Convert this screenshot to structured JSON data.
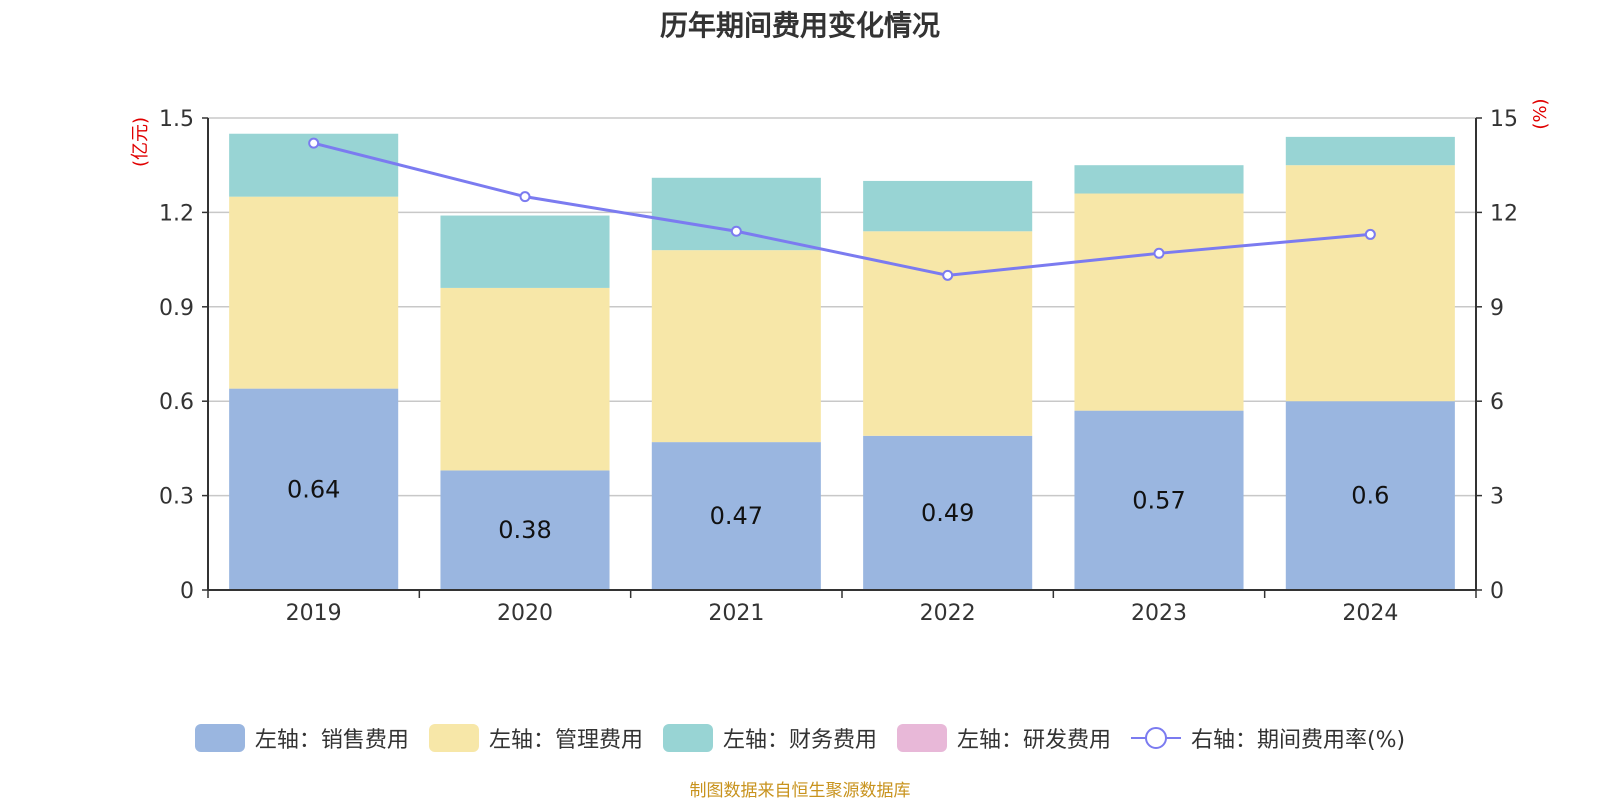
{
  "chart_data": {
    "type": "bar",
    "title": "历年期间费用变化情况",
    "categories": [
      "2019",
      "2020",
      "2021",
      "2022",
      "2023",
      "2024"
    ],
    "y_left": {
      "unit_label": "(亿元)",
      "ylim": [
        0,
        1.5
      ],
      "ticks": [
        "0",
        "0.3",
        "0.6",
        "0.9",
        "1.2",
        "1.5"
      ]
    },
    "y_right": {
      "unit_label": "(%)",
      "ylim": [
        0,
        15
      ],
      "ticks": [
        "0",
        "3",
        "6",
        "9",
        "12",
        "15"
      ]
    },
    "series": [
      {
        "name": "左轴：销售费用",
        "type": "bar",
        "axis": "left",
        "color": "#9ab6e0",
        "values": [
          0.64,
          0.38,
          0.47,
          0.49,
          0.57,
          0.6
        ],
        "labels": [
          "0.64",
          "0.38",
          "0.47",
          "0.49",
          "0.57",
          "0.6"
        ]
      },
      {
        "name": "左轴：管理费用",
        "type": "bar",
        "axis": "left",
        "color": "#f7e7a8",
        "values": [
          0.61,
          0.58,
          0.61,
          0.65,
          0.69,
          0.75
        ]
      },
      {
        "name": "左轴：财务费用",
        "type": "bar",
        "axis": "left",
        "color": "#98d4d4",
        "values": [
          0.2,
          0.23,
          0.23,
          0.16,
          0.09,
          0.09
        ]
      },
      {
        "name": "左轴：研发费用",
        "type": "bar",
        "axis": "left",
        "color": "#e8b8d8",
        "values": [
          0,
          0,
          0,
          0,
          0,
          0
        ]
      },
      {
        "name": "右轴：期间费用率(%)",
        "type": "line",
        "axis": "right",
        "color": "#7b7bf0",
        "values": [
          14.2,
          12.5,
          11.4,
          10.0,
          10.7,
          11.3
        ]
      }
    ],
    "grid": true,
    "legend_position": "bottom-center"
  },
  "source_note": "制图数据来自恒生聚源数据库"
}
